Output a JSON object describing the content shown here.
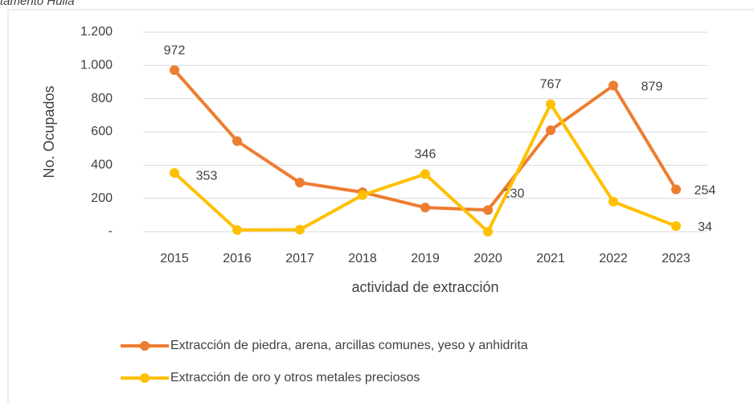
{
  "chart_data": {
    "type": "line",
    "title": "tamento Huila",
    "x_label": "actividad de extracción",
    "y_label": "No. Ocupados",
    "categories": [
      "2015",
      "2016",
      "2017",
      "2018",
      "2019",
      "2020",
      "2021",
      "2022",
      "2023"
    ],
    "series": [
      {
        "name": "Extracción de piedra, arena, arcillas comunes, yeso y anhidrita",
        "color": "#ED7D31",
        "values": [
          972,
          545,
          295,
          237,
          145,
          130,
          610,
          879,
          254
        ],
        "value_labels": [
          "972",
          null,
          null,
          null,
          null,
          "130",
          null,
          "879",
          "254"
        ]
      },
      {
        "name": "Extracción de oro y otros metales preciosos",
        "color": "#FFC000",
        "values": [
          353,
          10,
          12,
          220,
          346,
          0,
          767,
          180,
          34
        ],
        "value_labels": [
          "353",
          null,
          null,
          null,
          "346",
          null,
          "767",
          null,
          "34"
        ]
      }
    ],
    "ylim": [
      0,
      1200
    ],
    "yticks": [
      {
        "value": 0,
        "label": "-"
      },
      200,
      400,
      600,
      800,
      {
        "value": 1000,
        "label": "1.000"
      },
      {
        "value": 1200,
        "label": "1.200"
      }
    ],
    "grid": true,
    "legend": "bottom"
  }
}
